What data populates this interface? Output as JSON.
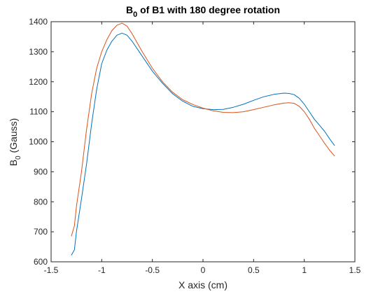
{
  "chart_data": {
    "type": "line",
    "title": {
      "main": "B",
      "sub": "0",
      "rest": " of B1 with 180 degree rotation"
    },
    "xlabel": "X axis (cm)",
    "ylabel": {
      "main": "B",
      "sub": "0",
      "rest": " (Gauss)"
    },
    "xlim": [
      -1.5,
      1.5
    ],
    "ylim": [
      600,
      1400
    ],
    "xticks": [
      -1.5,
      -1,
      -0.5,
      0,
      0.5,
      1,
      1.5
    ],
    "xtick_labels": [
      "-1.5",
      "-1",
      "-0.5",
      "0",
      "0.5",
      "1",
      "1.5"
    ],
    "yticks": [
      600,
      700,
      800,
      900,
      1000,
      1100,
      1200,
      1300,
      1400
    ],
    "ytick_labels": [
      "600",
      "700",
      "800",
      "900",
      "1000",
      "1100",
      "1200",
      "1300",
      "1400"
    ],
    "grid": false,
    "legend": "none",
    "series": [
      {
        "color": "#0072BD",
        "x": [
          -1.3,
          -1.27,
          -1.25,
          -1.2,
          -1.15,
          -1.1,
          -1.05,
          -1.0,
          -0.95,
          -0.9,
          -0.85,
          -0.8,
          -0.75,
          -0.7,
          -0.6,
          -0.5,
          -0.4,
          -0.3,
          -0.2,
          -0.1,
          0.0,
          0.1,
          0.2,
          0.3,
          0.4,
          0.5,
          0.6,
          0.7,
          0.8,
          0.85,
          0.9,
          0.95,
          1.0,
          1.05,
          1.1,
          1.15,
          1.2,
          1.25,
          1.3
        ],
        "y": [
          622,
          640,
          700,
          810,
          925,
          1060,
          1175,
          1260,
          1305,
          1335,
          1355,
          1362,
          1355,
          1335,
          1285,
          1235,
          1195,
          1160,
          1135,
          1118,
          1110,
          1107,
          1108,
          1115,
          1125,
          1138,
          1150,
          1158,
          1162,
          1161,
          1157,
          1145,
          1125,
          1100,
          1075,
          1055,
          1035,
          1010,
          987
        ]
      },
      {
        "color": "#D95319",
        "x": [
          -1.3,
          -1.27,
          -1.25,
          -1.2,
          -1.15,
          -1.1,
          -1.05,
          -1.0,
          -0.95,
          -0.9,
          -0.85,
          -0.8,
          -0.75,
          -0.7,
          -0.6,
          -0.5,
          -0.4,
          -0.3,
          -0.2,
          -0.1,
          0.0,
          0.1,
          0.2,
          0.3,
          0.4,
          0.5,
          0.6,
          0.7,
          0.8,
          0.85,
          0.9,
          0.95,
          1.0,
          1.05,
          1.1,
          1.15,
          1.2,
          1.25,
          1.3
        ],
        "y": [
          685,
          720,
          785,
          900,
          1040,
          1160,
          1245,
          1300,
          1340,
          1370,
          1388,
          1395,
          1385,
          1360,
          1300,
          1245,
          1200,
          1165,
          1140,
          1124,
          1112,
          1103,
          1098,
          1097,
          1100,
          1107,
          1115,
          1123,
          1129,
          1130,
          1128,
          1118,
          1100,
          1075,
          1045,
          1020,
          995,
          972,
          952
        ]
      }
    ]
  }
}
